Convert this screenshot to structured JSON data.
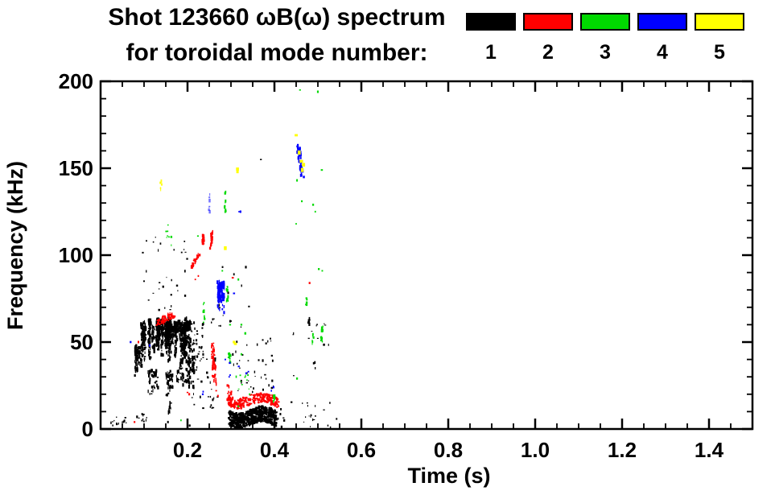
{
  "title": {
    "line1": "Shot 123660 ωB(ω) spectrum",
    "line2": "for toroidal mode number:"
  },
  "legend": {
    "entries": [
      {
        "mode": 1,
        "label": "1",
        "color": "#000000"
      },
      {
        "mode": 2,
        "label": "2",
        "color": "#ff0000"
      },
      {
        "mode": 3,
        "label": "3",
        "color": "#00d900"
      },
      {
        "mode": 4,
        "label": "4",
        "color": "#0000ff"
      },
      {
        "mode": 5,
        "label": "5",
        "color": "#ffff00"
      }
    ]
  },
  "chart_data": {
    "type": "scatter",
    "title": "Shot 123660 ωB(ω) spectrum",
    "subtitle": "for toroidal mode number:",
    "xlabel": "Time (s)",
    "ylabel": "Frequency (kHz)",
    "xlim": [
      0,
      1.5
    ],
    "ylim": [
      0,
      200
    ],
    "grid": false,
    "legend_position": "top-right",
    "xticks": {
      "major": [
        0.2,
        0.4,
        0.6,
        0.8,
        1.0,
        1.2,
        1.4
      ],
      "labels": [
        "0.2",
        "0.4",
        "0.6",
        "0.8",
        "1.0",
        "1.2",
        "1.4"
      ],
      "minor_step": 0.05
    },
    "yticks": {
      "major": [
        0,
        50,
        100,
        150,
        200
      ],
      "labels": [
        "0",
        "50",
        "100",
        "150",
        "200"
      ],
      "minor_step": 10
    },
    "series": [
      {
        "name": "n=1",
        "mode": 1,
        "color": "#000000",
        "clusters": [
          {
            "type": "vstreaks",
            "t": [
              0.095,
              0.205
            ],
            "f": [
              34,
              64
            ],
            "n": 820,
            "streaks": 26,
            "seed": 11
          },
          {
            "type": "vstreaks",
            "t": [
              0.074,
              0.098
            ],
            "f": [
              28,
              48
            ],
            "n": 90,
            "streaks": 8,
            "seed": 12
          },
          {
            "type": "vstreaks",
            "t": [
              0.1,
              0.2
            ],
            "f": [
              18,
              34
            ],
            "n": 120,
            "streaks": 12,
            "seed": 13
          },
          {
            "type": "vstreaks",
            "t": [
              0.185,
              0.225
            ],
            "f": [
              20,
              42
            ],
            "n": 70,
            "streaks": 7,
            "seed": 14
          },
          {
            "type": "vstreaks",
            "t": [
              0.13,
              0.19
            ],
            "f": [
              46,
              64
            ],
            "n": 300,
            "streaks": 12,
            "seed": 15
          },
          {
            "type": "uniform",
            "t": [
              0.205,
              0.237
            ],
            "f": [
              40,
              62
            ],
            "n": 40,
            "seed": 16
          },
          {
            "type": "band",
            "t": [
              0.295,
              0.405
            ],
            "f": [
              1.5,
              12
            ],
            "n": 640,
            "wiggle": 2,
            "seed": 17
          },
          {
            "type": "uniform",
            "t": [
              0.3,
              0.4
            ],
            "f": [
              20,
              52
            ],
            "n": 40,
            "seed": 18
          },
          {
            "type": "uniform",
            "t": [
              0.4,
              0.545
            ],
            "f": [
              1,
              16
            ],
            "n": 26,
            "seed": 19
          },
          {
            "type": "uniform",
            "t": [
              0.02,
              0.06
            ],
            "f": [
              2,
              7
            ],
            "n": 13,
            "seed": 20
          },
          {
            "type": "uniform",
            "t": [
              0.08,
              0.12
            ],
            "f": [
              3,
              9
            ],
            "n": 10,
            "seed": 21
          },
          {
            "type": "seg",
            "p0": [
              0.158,
              9
            ],
            "p1": [
              0.163,
              16
            ],
            "n": 14,
            "w": 1.5,
            "seed": 22
          },
          {
            "type": "uniform",
            "t": [
              0.21,
              0.27
            ],
            "f": [
              12,
              42
            ],
            "n": 30,
            "seed": 23
          },
          {
            "type": "uniform",
            "t": [
              0.09,
              0.2
            ],
            "f": [
              64,
              112
            ],
            "n": 30,
            "seed": 24
          },
          {
            "type": "uniform",
            "t": [
              0.25,
              0.345
            ],
            "f": [
              55,
              96
            ],
            "n": 16,
            "seed": 25
          },
          {
            "type": "uniform",
            "t": [
              0.44,
              0.53
            ],
            "f": [
              28,
              66
            ],
            "n": 16,
            "seed": 26
          },
          {
            "type": "seg",
            "p0": [
              0.48,
              60
            ],
            "p1": [
              0.48,
              64
            ],
            "n": 8,
            "w": 1,
            "seed": 27
          },
          {
            "type": "points",
            "pts": [
              [
                0.369,
                155
              ],
              [
                0.298,
                62
              ],
              [
                0.236,
                12
              ],
              [
                0.205,
                2
              ],
              [
                0.155,
                4
              ]
            ],
            "size": 2
          }
        ]
      },
      {
        "name": "n=2",
        "mode": 2,
        "color": "#ff0000",
        "clusters": [
          {
            "type": "seg",
            "p0": [
              0.132,
              61
            ],
            "p1": [
              0.168,
              66
            ],
            "n": 55,
            "w": 2.5,
            "seed": 31
          },
          {
            "type": "seg",
            "p0": [
              0.236,
              105
            ],
            "p1": [
              0.237,
              112.5
            ],
            "n": 18,
            "w": 1.2,
            "seed": 32
          },
          {
            "type": "seg",
            "p0": [
              0.254,
              104
            ],
            "p1": [
              0.256,
              113.5
            ],
            "n": 22,
            "w": 1.2,
            "seed": 33
          },
          {
            "type": "seg",
            "p0": [
              0.207,
              93
            ],
            "p1": [
              0.226,
              100
            ],
            "n": 24,
            "w": 1.5,
            "seed": 34
          },
          {
            "type": "seg",
            "p0": [
              0.257,
              49
            ],
            "p1": [
              0.263,
              26
            ],
            "n": 55,
            "w": 2,
            "seed": 35
          },
          {
            "type": "band",
            "t": [
              0.292,
              0.41
            ],
            "f": [
              13,
              20
            ],
            "n": 230,
            "wiggle": 1.8,
            "seed": 36
          },
          {
            "type": "seg",
            "p0": [
              0.293,
              25
            ],
            "p1": [
              0.302,
              16
            ],
            "n": 18,
            "w": 1.8,
            "seed": 37
          },
          {
            "type": "points",
            "pts": [
              [
                0.2,
                21
              ],
              [
                0.204,
                20
              ],
              [
                0.304,
                87
              ],
              [
                0.481,
                84
              ],
              [
                0.087,
                50
              ],
              [
                0.078,
                4
              ],
              [
                0.225,
                88
              ],
              [
                0.218,
                86
              ],
              [
                0.266,
                22
              ],
              [
                0.27,
                19
              ]
            ],
            "size": 2
          }
        ]
      },
      {
        "name": "n=3",
        "mode": 3,
        "color": "#00d900",
        "clusters": [
          {
            "type": "uniform",
            "t": [
              0.15,
              0.165
            ],
            "f": [
              103,
              118
            ],
            "n": 9,
            "seed": 41
          },
          {
            "type": "seg",
            "p0": [
              0.238,
              61
            ],
            "p1": [
              0.238,
              74
            ],
            "n": 10,
            "w": 1,
            "seed": 42
          },
          {
            "type": "seg",
            "p0": [
              0.292,
              72
            ],
            "p1": [
              0.292,
              82
            ],
            "n": 12,
            "w": 1.2,
            "seed": 43
          },
          {
            "type": "seg",
            "p0": [
              0.287,
              125
            ],
            "p1": [
              0.288,
              137
            ],
            "n": 9,
            "w": 1,
            "seed": 44
          },
          {
            "type": "blob",
            "t": [
              0.293,
              0.302
            ],
            "f": [
              38,
              45
            ],
            "n": 16,
            "seed": 45
          },
          {
            "type": "uniform",
            "t": [
              0.31,
              0.345
            ],
            "f": [
              20,
              31
            ],
            "n": 9,
            "seed": 46
          },
          {
            "type": "seg",
            "p0": [
              0.399,
              15
            ],
            "p1": [
              0.4,
              20
            ],
            "n": 8,
            "w": 1,
            "seed": 47
          },
          {
            "type": "seg",
            "p0": [
              0.508,
              50
            ],
            "p1": [
              0.512,
              60
            ],
            "n": 12,
            "w": 1.4,
            "seed": 48
          },
          {
            "type": "seg",
            "p0": [
              0.487,
              48
            ],
            "p1": [
              0.489,
              55
            ],
            "n": 8,
            "w": 1.2,
            "seed": 49
          },
          {
            "type": "seg",
            "p0": [
              0.474,
              70
            ],
            "p1": [
              0.475,
              75
            ],
            "n": 6,
            "w": 1,
            "seed": 50
          },
          {
            "type": "points",
            "pts": [
              [
                0.459,
                195
              ],
              [
                0.5,
                194
              ],
              [
                0.509,
                149
              ],
              [
                0.489,
                129
              ],
              [
                0.452,
                143
              ],
              [
                0.463,
                131
              ],
              [
                0.494,
                125
              ],
              [
                0.45,
                118
              ],
              [
                0.224,
                111
              ],
              [
                0.317,
                86
              ],
              [
                0.28,
                91
              ],
              [
                0.185,
                5
              ],
              [
                0.452,
                29
              ],
              [
                0.51,
                91
              ],
              [
                0.502,
                92
              ],
              [
                0.298,
                60
              ],
              [
                0.324,
                60
              ],
              [
                0.333,
                55
              ],
              [
                0.324,
                43
              ],
              [
                0.339,
                31
              ],
              [
                0.343,
                20
              ],
              [
                0.317,
                13
              ]
            ],
            "size": 2
          }
        ]
      },
      {
        "name": "n=4",
        "mode": 4,
        "color": "#0000ff",
        "clusters": [
          {
            "type": "vstreaks",
            "t": [
              0.259,
              0.285
            ],
            "f": [
              64,
              85
            ],
            "n": 130,
            "streaks": 6,
            "seed": 61
          },
          {
            "type": "seg",
            "p0": [
              0.455,
              162
            ],
            "p1": [
              0.465,
              145
            ],
            "n": 50,
            "w": 2.2,
            "seed": 62
          },
          {
            "type": "seg",
            "p0": [
              0.251,
              125
            ],
            "p1": [
              0.251,
              135
            ],
            "n": 7,
            "w": 1,
            "alpha": 0.55,
            "seed": 63
          },
          {
            "type": "points",
            "pts": [
              [
                0.319,
                125
              ],
              [
                0.322,
                125
              ],
              [
                0.307,
                78
              ],
              [
                0.069,
                50
              ],
              [
                0.113,
                48
              ],
              [
                0.235,
                20
              ],
              [
                0.236,
                21.5
              ],
              [
                0.296,
                30
              ],
              [
                0.298,
                31
              ],
              [
                0.335,
                32
              ],
              [
                0.34,
                33
              ],
              [
                0.393,
                22
              ],
              [
                0.398,
                24
              ],
              [
                0.287,
                40
              ],
              [
                0.297,
                38
              ],
              [
                0.318,
                36
              ]
            ],
            "size": 2
          }
        ]
      },
      {
        "name": "n=5",
        "mode": 5,
        "color": "#ffff00",
        "clusters": [
          {
            "type": "seg",
            "p0": [
              0.139,
              138
            ],
            "p1": [
              0.139,
              143
            ],
            "n": 6,
            "w": 1,
            "alpha": 0.85,
            "seed": 71
          },
          {
            "type": "points",
            "pts": [
              [
                0.45,
                169
              ],
              [
                0.457,
                159
              ],
              [
                0.462,
                154
              ],
              [
                0.467,
                152
              ],
              [
                0.464,
                149
              ],
              [
                0.315,
                149.5
              ],
              [
                0.315,
                148
              ],
              [
                0.307,
                50
              ],
              [
                0.31,
                49
              ],
              [
                0.287,
                104
              ]
            ],
            "size": 3.5
          }
        ]
      }
    ]
  }
}
